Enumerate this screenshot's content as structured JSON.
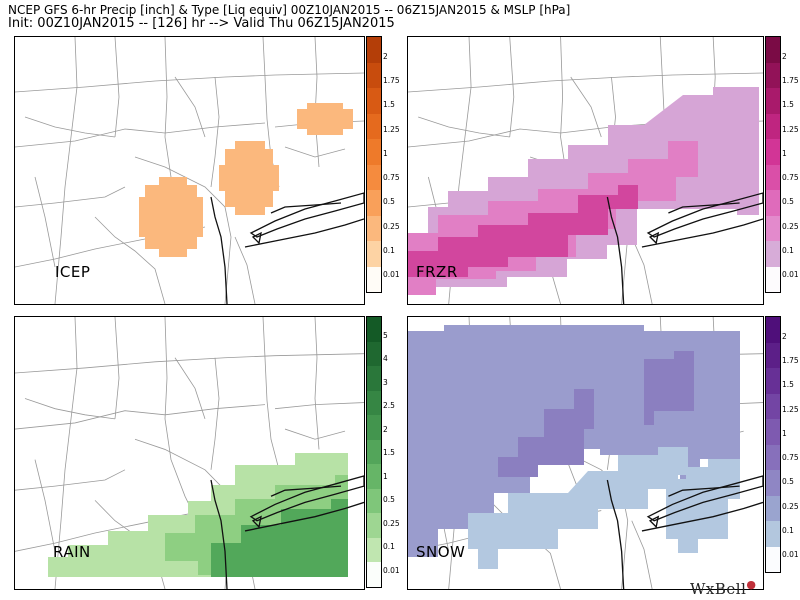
{
  "header": {
    "line1": "NCEP GFS 6-hr Precip [inch] & Type [Liq equiv] 00Z10JAN2015 -- 06Z15JAN2015 & MSLP [hPa]",
    "line2": "Init: 00Z10JAN2015 -- [126] hr --> Valid Thu 06Z15JAN2015"
  },
  "panels": [
    {
      "id": "icep",
      "label": "ICEP",
      "ticks": [
        "2",
        "1.75",
        "1.5",
        "1.25",
        "1",
        "0.75",
        "0.5",
        "0.25",
        "0.1",
        "0.01"
      ],
      "colors": [
        "#fffcf7",
        "#fdd3a4",
        "#fbb87d",
        "#f9a05a",
        "#f58b3e",
        "#ee7a2a",
        "#e56a1e",
        "#d85a14",
        "#c84c0d",
        "#b43e08"
      ],
      "fill": "#fbb87d"
    },
    {
      "id": "frzr",
      "label": "FRZR",
      "ticks": [
        "2",
        "1.75",
        "1.5",
        "1.25",
        "1",
        "0.75",
        "0.5",
        "0.25",
        "0.1",
        "0.01"
      ],
      "colors": [
        "#fdfbfd",
        "#d7acd8",
        "#e38acc",
        "#df6bbb",
        "#da4fa8",
        "#d23596",
        "#bf2580",
        "#a91a6b",
        "#921258",
        "#7a0b45"
      ],
      "fill_light": "#d6a5d6",
      "fill_mid": "#e17fc5",
      "fill_dark": "#d2469e"
    },
    {
      "id": "rain",
      "label": "RAIN",
      "ticks": [
        "5",
        "4",
        "3",
        "2.5",
        "2",
        "1.5",
        "1",
        "0.5",
        "0.25",
        "0.1",
        "0.01"
      ],
      "colors": [
        "#fbfefb",
        "#c0e6b0",
        "#9ed692",
        "#7fc67a",
        "#66b567",
        "#53a55a",
        "#43954e",
        "#368644",
        "#2a773a",
        "#1f6830",
        "#145a26"
      ],
      "fill_light": "#b7e2a6",
      "fill_mid": "#8ecf82",
      "fill_dark": "#52a85a"
    },
    {
      "id": "snow",
      "label": "SNOW",
      "ticks": [
        "2",
        "1.75",
        "1.5",
        "1.25",
        "1",
        "0.75",
        "0.5",
        "0.25",
        "0.1",
        "0.01"
      ],
      "colors": [
        "#fbfcfe",
        "#b3c7de",
        "#9aa4cf",
        "#8f86c4",
        "#8770bb",
        "#7e5ab0",
        "#7345a4",
        "#673096",
        "#5c1f88",
        "#4f0f7a"
      ],
      "fill_light": "#b3c8e0",
      "fill_mid": "#9a9ccd",
      "fill_dark": "#8b7fc0"
    }
  ],
  "logo": {
    "text": "WxBell",
    "mark": "●"
  }
}
